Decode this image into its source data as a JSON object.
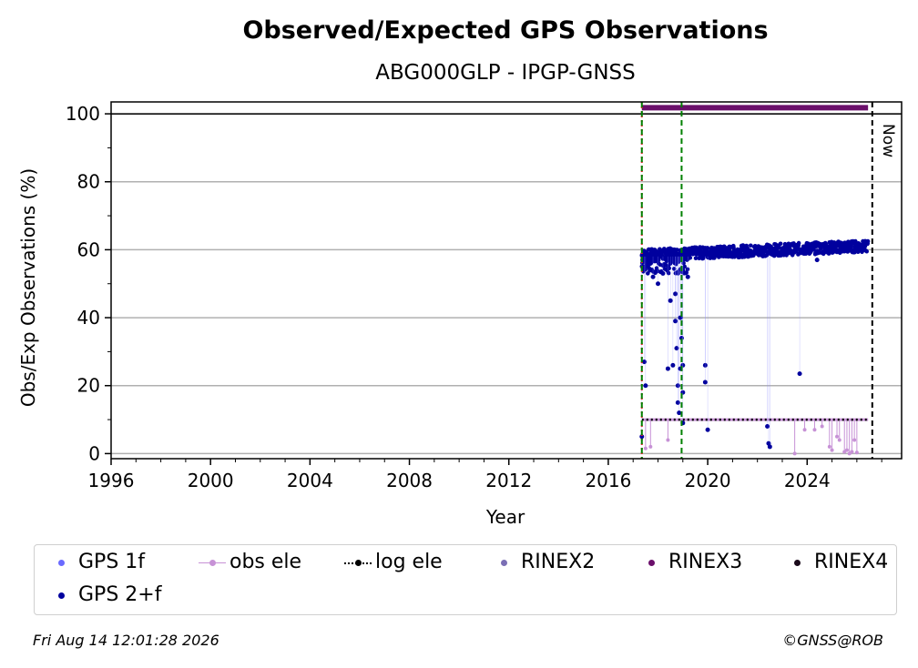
{
  "chart_data": {
    "type": "scatter",
    "title": "Observed/Expected GPS Observations",
    "subtitle": "ABG000GLP - IPGP-GNSS",
    "xlabel": "Year",
    "ylabel": "Obs/Exp Observations (%)",
    "xlim": [
      1996,
      2027.8
    ],
    "ylim": [
      -1.5,
      103.5
    ],
    "x_ticks": [
      1996,
      2000,
      2004,
      2008,
      2012,
      2016,
      2020,
      2024
    ],
    "y_ticks": [
      0,
      20,
      40,
      60,
      80,
      100
    ],
    "grid": "horizontal",
    "reference_line_y": 100,
    "vertical_lines": [
      {
        "x": 2017.35,
        "color": "#d62728",
        "style": "dotted"
      },
      {
        "x": 2017.35,
        "color": "#008000",
        "style": "dashed"
      },
      {
        "x": 2018.95,
        "color": "#008000",
        "style": "dashed"
      },
      {
        "x": 2026.62,
        "color": "#000000",
        "style": "dashed",
        "label": "Now"
      }
    ],
    "series": [
      {
        "name": "GPS 1f",
        "color": "#6a6aff",
        "points": []
      },
      {
        "name": "obs ele",
        "color": "#c792d6",
        "baseline": 10,
        "x_range": [
          2017.35,
          2026.45
        ],
        "dips": [
          [
            2017.5,
            1.5
          ],
          [
            2017.7,
            2
          ],
          [
            2018.4,
            4
          ],
          [
            2019.0,
            9
          ],
          [
            2023.5,
            0
          ],
          [
            2023.9,
            7
          ],
          [
            2024.3,
            7
          ],
          [
            2024.6,
            8
          ],
          [
            2024.9,
            2
          ],
          [
            2025.0,
            1
          ],
          [
            2025.2,
            5
          ],
          [
            2025.3,
            4
          ],
          [
            2025.5,
            0.5
          ],
          [
            2025.6,
            1
          ],
          [
            2025.7,
            0
          ],
          [
            2025.8,
            0.5
          ],
          [
            2025.9,
            4
          ],
          [
            2026.0,
            0.3
          ]
        ]
      },
      {
        "name": "log ele",
        "color": "#000000",
        "y": 10,
        "x_range": [
          2017.35,
          2026.45
        ]
      },
      {
        "name": "RINEX2",
        "color": "#7b6fb5",
        "points": []
      },
      {
        "name": "RINEX3",
        "color": "#6b0f6b",
        "y": 101.8,
        "x_range": [
          2017.35,
          2026.45
        ]
      },
      {
        "name": "RINEX4",
        "color": "#1a0a1a",
        "points": []
      },
      {
        "name": "GPS 2+f",
        "color": "#00009e",
        "x_range": [
          2017.35,
          2026.45
        ],
        "typical_range": [
          56,
          62
        ],
        "outliers": [
          [
            2017.35,
            5
          ],
          [
            2017.45,
            27
          ],
          [
            2017.5,
            20
          ],
          [
            2017.8,
            52
          ],
          [
            2018.0,
            50
          ],
          [
            2018.2,
            53
          ],
          [
            2018.4,
            25
          ],
          [
            2018.5,
            45
          ],
          [
            2018.6,
            26
          ],
          [
            2018.7,
            39
          ],
          [
            2018.7,
            47
          ],
          [
            2018.75,
            31
          ],
          [
            2018.8,
            20
          ],
          [
            2018.8,
            15
          ],
          [
            2018.85,
            12
          ],
          [
            2018.9,
            25
          ],
          [
            2018.9,
            40
          ],
          [
            2018.95,
            34
          ],
          [
            2019.0,
            26
          ],
          [
            2019.0,
            18
          ],
          [
            2019.0,
            9
          ],
          [
            2019.2,
            52
          ],
          [
            2019.9,
            26
          ],
          [
            2019.9,
            21
          ],
          [
            2020.0,
            7
          ],
          [
            2022.4,
            8
          ],
          [
            2022.45,
            3
          ],
          [
            2022.5,
            2
          ],
          [
            2023.7,
            23.5
          ],
          [
            2024.4,
            57
          ]
        ]
      }
    ]
  },
  "legend": {
    "gps1f": "GPS 1f",
    "obs_ele": "obs ele",
    "log_ele": "log ele",
    "rinex2": "RINEX2",
    "rinex3": "RINEX3",
    "rinex4": "RINEX4",
    "gps2f": "GPS 2+f"
  },
  "footer": {
    "timestamp": "Fri Aug 14 12:01:28 2026",
    "credit": "©GNSS@ROB"
  },
  "now_label": "Now"
}
